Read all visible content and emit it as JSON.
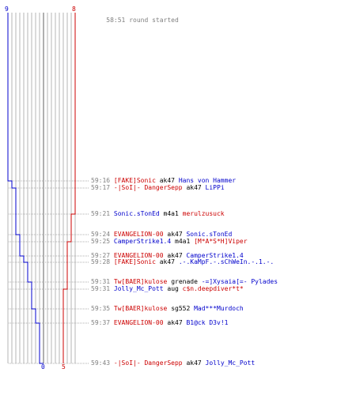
{
  "round": {
    "start_time": "58:51",
    "start_text": "round started",
    "end_time": "59:43"
  },
  "teams": {
    "blue": {
      "color": "#0000cc",
      "start_score": "9",
      "end_score": "0"
    },
    "red": {
      "color": "#cc0000",
      "start_score": "8",
      "end_score": "5"
    }
  },
  "events": [
    {
      "time": "59:16",
      "killer": "[FAKE]Sonic",
      "killer_team": "red",
      "weapon": "ak47",
      "victim": "Hans von Hammer",
      "victim_team": "blue"
    },
    {
      "time": "59:17",
      "killer": "-|SoI|- DangerSepp",
      "killer_team": "red",
      "weapon": "ak47",
      "victim": "LiPPi",
      "victim_team": "blue"
    },
    {
      "time": "59:21",
      "killer": "Sonic.sTonEd",
      "killer_team": "blue",
      "weapon": "m4a1",
      "victim": "merulzusuck",
      "victim_team": "red"
    },
    {
      "time": "59:24",
      "killer": "EVANGELION-00",
      "killer_team": "red",
      "weapon": "ak47",
      "victim": "Sonic.sTonEd",
      "victim_team": "blue"
    },
    {
      "time": "59:25",
      "killer": "CamperStrike1.4",
      "killer_team": "blue",
      "weapon": "m4a1",
      "victim": "[M*A*S*H]Viper",
      "victim_team": "red"
    },
    {
      "time": "59:27",
      "killer": "EVANGELION-00",
      "killer_team": "red",
      "weapon": "ak47",
      "victim": "CamperStrike1.4",
      "victim_team": "blue"
    },
    {
      "time": "59:28",
      "killer": "[FAKE]Sonic",
      "killer_team": "red",
      "weapon": "ak47",
      "victim": ".-.KaMpF.-.sChWeIn.-.1.-.",
      "victim_team": "blue"
    },
    {
      "time": "59:31",
      "killer": "Tw[BAER]kulose",
      "killer_team": "red",
      "weapon": "grenade",
      "victim": "-=]Xysaia[=- Pylades",
      "victim_team": "blue"
    },
    {
      "time": "59:31",
      "killer": "Jolly_Mc_Pott",
      "killer_team": "blue",
      "weapon": "aug",
      "victim": "c$n.deepdiver*t*",
      "victim_team": "red"
    },
    {
      "time": "59:35",
      "killer": "Tw[BAER]kulose",
      "killer_team": "red",
      "weapon": "sg552",
      "victim": "Mad***Murdoch",
      "victim_team": "blue"
    },
    {
      "time": "59:37",
      "killer": "EVANGELION-00",
      "killer_team": "red",
      "weapon": "ak47",
      "victim": "B1@ck D3v!1",
      "victim_team": "blue"
    },
    {
      "time": "59:43",
      "killer": "-|SoI|- DangerSepp",
      "killer_team": "red",
      "weapon": "ak47",
      "victim": "Jolly_Mc_Pott",
      "victim_team": "blue"
    }
  ]
}
